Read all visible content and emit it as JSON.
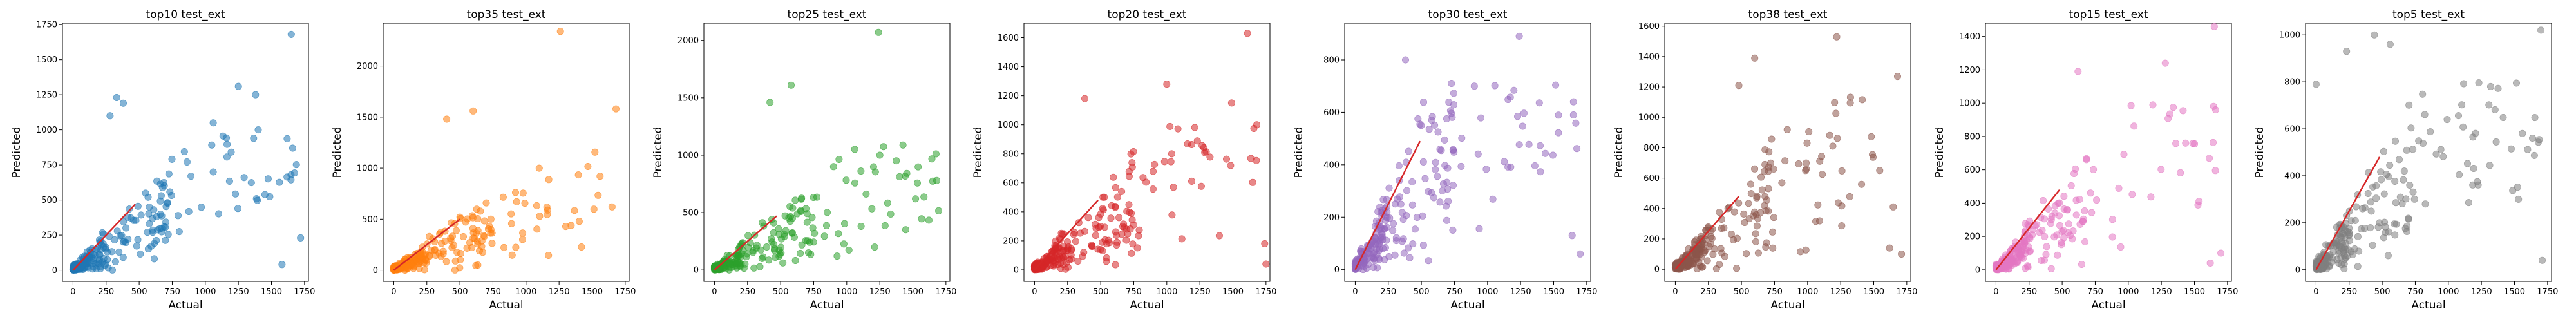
{
  "figure": {
    "background": "#ffffff",
    "fit_line_color": "#d62728"
  },
  "chart_data": [
    {
      "type": "scatter",
      "title": "top10 test_ext",
      "xlabel": "Actual",
      "ylabel": "Predicted",
      "color": "#1f77b4",
      "xlim": [
        -80,
        1780
      ],
      "ylim": [
        -80,
        1760
      ],
      "xticks": [
        "0",
        "250",
        "500",
        "750",
        "1000",
        "1250",
        "1500",
        "1750"
      ],
      "xtick_values": [
        0,
        250,
        500,
        750,
        1000,
        1250,
        1500,
        1750
      ],
      "yticks": [
        "0",
        "250",
        "500",
        "750",
        "1000",
        "1250",
        "1500",
        "1750"
      ],
      "ytick_values": [
        0,
        250,
        500,
        750,
        1000,
        1250,
        1500,
        1750
      ],
      "fit_line": [
        [
          0,
          0
        ],
        [
          470,
          470
        ]
      ],
      "outliers": [
        [
          1650,
          1680
        ],
        [
          1250,
          1310
        ],
        [
          1380,
          1250
        ],
        [
          330,
          1230
        ],
        [
          380,
          1190
        ],
        [
          280,
          1100
        ],
        [
          1400,
          1000
        ],
        [
          1060,
          1050
        ],
        [
          1660,
          870
        ],
        [
          1720,
          230
        ],
        [
          1580,
          40
        ]
      ],
      "seed": 11,
      "n_points": 240,
      "x_max": 1700,
      "y_max": 1000,
      "y_scale": 0.55
    },
    {
      "type": "scatter",
      "title": "top35 test_ext",
      "xlabel": "Actual",
      "ylabel": "Predicted",
      "color": "#ff7f0e",
      "xlim": [
        -80,
        1780
      ],
      "ylim": [
        -110,
        2420
      ],
      "xticks": [
        "0",
        "250",
        "500",
        "750",
        "1000",
        "1250",
        "1500",
        "1750"
      ],
      "xtick_values": [
        0,
        250,
        500,
        750,
        1000,
        1250,
        1500,
        1750
      ],
      "yticks": [
        "0",
        "500",
        "1000",
        "1500",
        "2000"
      ],
      "ytick_values": [
        0,
        500,
        1000,
        1500,
        2000
      ],
      "fit_line": [
        [
          0,
          0
        ],
        [
          500,
          500
        ]
      ],
      "outliers": [
        [
          1260,
          2340
        ],
        [
          600,
          1560
        ],
        [
          1680,
          1580
        ],
        [
          1560,
          920
        ],
        [
          1650,
          620
        ],
        [
          400,
          1480
        ],
        [
          1100,
          1000
        ]
      ],
      "seed": 35,
      "n_points": 240,
      "x_max": 1650,
      "y_max": 1300,
      "y_scale": 0.55
    },
    {
      "type": "scatter",
      "title": "top25 test_ext",
      "xlabel": "Actual",
      "ylabel": "Predicted",
      "color": "#2ca02c",
      "xlim": [
        -80,
        1780
      ],
      "ylim": [
        -100,
        2150
      ],
      "xticks": [
        "0",
        "250",
        "500",
        "750",
        "1000",
        "1250",
        "1500",
        "1750"
      ],
      "xtick_values": [
        0,
        250,
        500,
        750,
        1000,
        1250,
        1500,
        1750
      ],
      "yticks": [
        "0",
        "500",
        "1000",
        "1500",
        "2000"
      ],
      "ytick_values": [
        0,
        500,
        1000,
        1500,
        2000
      ],
      "fit_line": [
        [
          0,
          0
        ],
        [
          470,
          470
        ]
      ],
      "outliers": [
        [
          1240,
          2070
        ],
        [
          580,
          1610
        ],
        [
          420,
          1460
        ],
        [
          1680,
          780
        ],
        [
          1520,
          620
        ],
        [
          900,
          900
        ],
        [
          1250,
          1000
        ]
      ],
      "seed": 25,
      "n_points": 240,
      "x_max": 1700,
      "y_max": 1100,
      "y_scale": 0.55
    },
    {
      "type": "scatter",
      "title": "top20 test_ext",
      "xlabel": "Actual",
      "ylabel": "Predicted",
      "color": "#d62728",
      "xlim": [
        -80,
        1780
      ],
      "ylim": [
        -80,
        1700
      ],
      "xticks": [
        "0",
        "250",
        "500",
        "750",
        "1000",
        "1250",
        "1500",
        "1750"
      ],
      "xtick_values": [
        0,
        250,
        500,
        750,
        1000,
        1250,
        1500,
        1750
      ],
      "yticks": [
        "0",
        "200",
        "400",
        "600",
        "800",
        "1000",
        "1200",
        "1400",
        "1600"
      ],
      "ytick_values": [
        0,
        200,
        400,
        600,
        800,
        1000,
        1200,
        1400,
        1600
      ],
      "fit_line": [
        [
          0,
          0
        ],
        [
          480,
          480
        ]
      ],
      "outliers": [
        [
          1610,
          1630
        ],
        [
          1000,
          1280
        ],
        [
          1680,
          1000
        ],
        [
          1490,
          1150
        ],
        [
          380,
          1180
        ],
        [
          1740,
          180
        ],
        [
          1750,
          40
        ]
      ],
      "seed": 20,
      "n_points": 260,
      "x_max": 1700,
      "y_max": 1100,
      "y_scale": 0.6
    },
    {
      "type": "scatter",
      "title": "top30 test_ext",
      "xlabel": "Actual",
      "ylabel": "Predicted",
      "color": "#9467bd",
      "xlim": [
        -80,
        1780
      ],
      "ylim": [
        -45,
        940
      ],
      "xticks": [
        "0",
        "250",
        "500",
        "750",
        "1000",
        "1250",
        "1500",
        "1750"
      ],
      "xtick_values": [
        0,
        250,
        500,
        750,
        1000,
        1250,
        1500,
        1750
      ],
      "yticks": [
        "0",
        "200",
        "400",
        "600",
        "800"
      ],
      "ytick_values": [
        0,
        200,
        400,
        600,
        800
      ],
      "fit_line": [
        [
          0,
          0
        ],
        [
          490,
          490
        ]
      ],
      "outliers": [
        [
          1240,
          890
        ],
        [
          1650,
          640
        ],
        [
          1650,
          590
        ],
        [
          1700,
          60
        ],
        [
          1640,
          130
        ],
        [
          380,
          800
        ],
        [
          900,
          700
        ]
      ],
      "seed": 30,
      "n_points": 260,
      "x_max": 1700,
      "y_max": 720,
      "y_scale": 0.65
    },
    {
      "type": "scatter",
      "title": "top38 test_ext",
      "xlabel": "Actual",
      "ylabel": "Predicted",
      "color": "#8c564b",
      "xlim": [
        -80,
        1780
      ],
      "ylim": [
        -80,
        1620
      ],
      "xticks": [
        "0",
        "250",
        "500",
        "750",
        "1000",
        "1250",
        "1500",
        "1750"
      ],
      "xtick_values": [
        0,
        250,
        500,
        750,
        1000,
        1250,
        1500,
        1750
      ],
      "yticks": [
        "0",
        "200",
        "400",
        "600",
        "800",
        "1000",
        "1200",
        "1400",
        "1600"
      ],
      "ytick_values": [
        0,
        200,
        400,
        600,
        800,
        1000,
        1200,
        1400,
        1600
      ],
      "fit_line": [
        [
          0,
          0
        ],
        [
          480,
          480
        ]
      ],
      "outliers": [
        [
          1220,
          1530
        ],
        [
          1680,
          1270
        ],
        [
          600,
          1390
        ],
        [
          480,
          1210
        ],
        [
          1620,
          140
        ],
        [
          1710,
          100
        ]
      ],
      "seed": 38,
      "n_points": 260,
      "x_max": 1700,
      "y_max": 1150,
      "y_scale": 0.6
    },
    {
      "type": "scatter",
      "title": "top15 test_ext",
      "xlabel": "Actual",
      "ylabel": "Predicted",
      "color": "#e377c2",
      "xlim": [
        -80,
        1780
      ],
      "ylim": [
        -70,
        1480
      ],
      "xticks": [
        "0",
        "250",
        "500",
        "750",
        "1000",
        "1250",
        "1500",
        "1750"
      ],
      "xtick_values": [
        0,
        250,
        500,
        750,
        1000,
        1250,
        1500,
        1750
      ],
      "yticks": [
        "0",
        "200",
        "400",
        "600",
        "800",
        "1000",
        "1200",
        "1400"
      ],
      "ytick_values": [
        0,
        200,
        400,
        600,
        800,
        1000,
        1200,
        1400
      ],
      "fit_line": [
        [
          0,
          0
        ],
        [
          480,
          480
        ]
      ],
      "outliers": [
        [
          1650,
          1460
        ],
        [
          1280,
          1240
        ],
        [
          620,
          1190
        ],
        [
          1660,
          960
        ],
        [
          1700,
          100
        ],
        [
          1620,
          40
        ]
      ],
      "seed": 15,
      "n_points": 250,
      "x_max": 1700,
      "y_max": 1050,
      "y_scale": 0.55
    },
    {
      "type": "scatter",
      "title": "top5 test_ext",
      "xlabel": "Actual",
      "ylabel": "Predicted",
      "color": "#7f7f7f",
      "xlim": [
        -80,
        1780
      ],
      "ylim": [
        -50,
        1050
      ],
      "xticks": [
        "0",
        "250",
        "500",
        "750",
        "1000",
        "1250",
        "1500",
        "1750"
      ],
      "xtick_values": [
        0,
        250,
        500,
        750,
        1000,
        1250,
        1500,
        1750
      ],
      "yticks": [
        "0",
        "200",
        "400",
        "600",
        "800",
        "1000"
      ],
      "ytick_values": [
        0,
        200,
        400,
        600,
        800,
        1000
      ],
      "fit_line": [
        [
          0,
          0
        ],
        [
          480,
          480
        ]
      ],
      "outliers": [
        [
          1700,
          1020
        ],
        [
          440,
          1000
        ],
        [
          560,
          960
        ],
        [
          0,
          790
        ],
        [
          230,
          930
        ],
        [
          1320,
          780
        ],
        [
          1560,
          580
        ],
        [
          1710,
          40
        ],
        [
          1530,
          300
        ]
      ],
      "seed": 5,
      "n_points": 250,
      "x_max": 1700,
      "y_max": 800,
      "y_scale": 0.6
    }
  ]
}
